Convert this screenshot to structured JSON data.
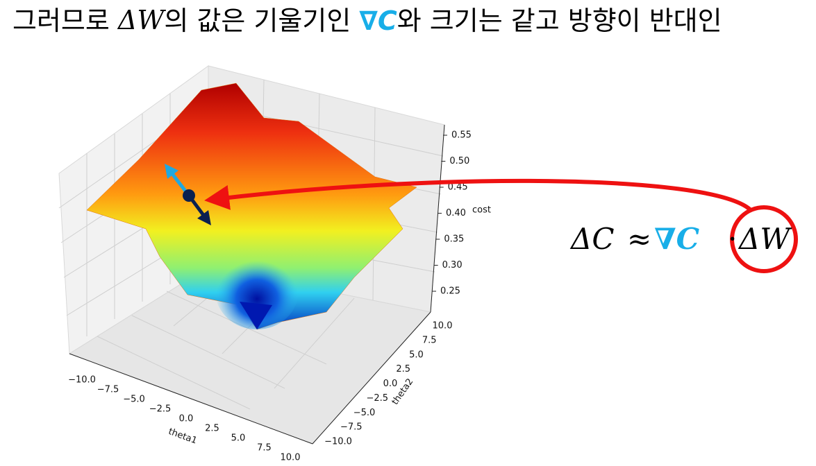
{
  "title": {
    "parts": [
      "그러므로 ",
      "ΔW",
      "의 값은 기울기인 ",
      "∇C",
      "와 크기는 같고 방향이 반대인"
    ]
  },
  "equation": {
    "parts": [
      "ΔC",
      "≈",
      "∇C",
      "·",
      "ΔW"
    ]
  },
  "plot": {
    "x_label": "theta1",
    "y_label": "theta2",
    "z_label": "cost",
    "x_ticks": [
      "−10.0",
      "−7.5",
      "−5.0",
      "−2.5",
      "0.0",
      "2.5",
      "5.0",
      "7.5",
      "10.0"
    ],
    "y_ticks": [
      "10.0",
      "7.5",
      "5.0",
      "2.5",
      "0.0",
      "−2.5",
      "−5.0",
      "−7.5",
      "−10.0"
    ],
    "z_ticks": [
      "0.55",
      "0.50",
      "0.45",
      "0.40",
      "0.35",
      "0.30",
      "0.25"
    ]
  }
}
